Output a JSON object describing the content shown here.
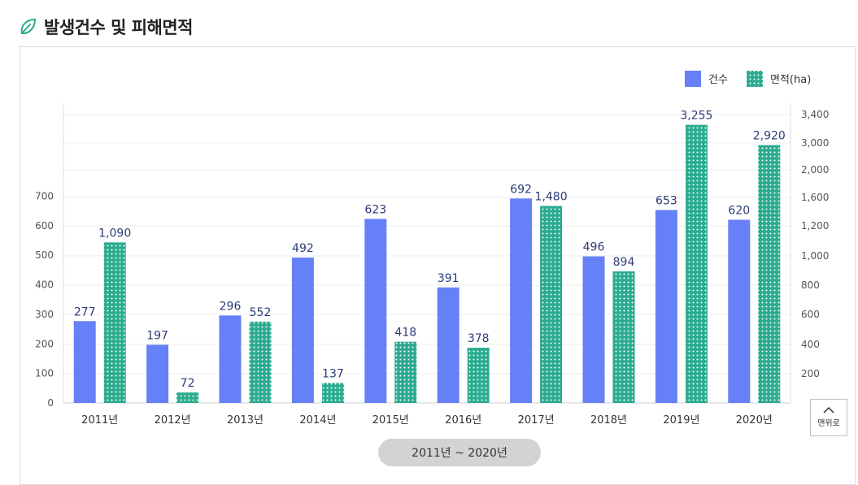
{
  "header": {
    "title": "발생건수 및 피해면적",
    "icon": "leaf-icon"
  },
  "colors": {
    "count": "#6680f8",
    "area": "#2bab8f",
    "label": "#2c3a77",
    "accent_icon": "#29a88a"
  },
  "chart_data": {
    "type": "bar",
    "title": "",
    "categories": [
      "2011년",
      "2012년",
      "2013년",
      "2014년",
      "2015년",
      "2016년",
      "2017년",
      "2018년",
      "2019년",
      "2020년"
    ],
    "series": [
      {
        "name": "건수",
        "axis": "left",
        "pattern": "solid",
        "values": [
          277,
          197,
          296,
          492,
          623,
          391,
          692,
          496,
          653,
          620
        ],
        "labels": [
          "277",
          "197",
          "296",
          "492",
          "623",
          "391",
          "692",
          "496",
          "653",
          "620"
        ]
      },
      {
        "name": "면적(ha)",
        "axis": "right",
        "pattern": "dotted",
        "values": [
          1090,
          72,
          552,
          137,
          418,
          378,
          1480,
          894,
          3255,
          2920
        ],
        "labels": [
          "1,090",
          "72",
          "552",
          "137",
          "418",
          "378",
          "1,480",
          "894",
          "3,255",
          "2,920"
        ]
      }
    ],
    "y_left": {
      "ticks": [
        0,
        100,
        200,
        300,
        400,
        500,
        600,
        700
      ],
      "tick_labels": [
        "0",
        "100",
        "200",
        "300",
        "400",
        "500",
        "600",
        "700"
      ]
    },
    "y_right": {
      "ticks": [
        200,
        400,
        600,
        800,
        1000,
        1200,
        1600,
        2000,
        3000,
        3400
      ],
      "tick_labels": [
        "200",
        "400",
        "600",
        "800",
        "1,000",
        "1,200",
        "1,600",
        "2,000",
        "3,000",
        "3,400"
      ]
    },
    "legend_position": "top-right",
    "grid": true
  },
  "period_label": "2011년 ~ 2020년",
  "top_button": {
    "label": "맨위로",
    "icon": "chevron-up-icon"
  }
}
